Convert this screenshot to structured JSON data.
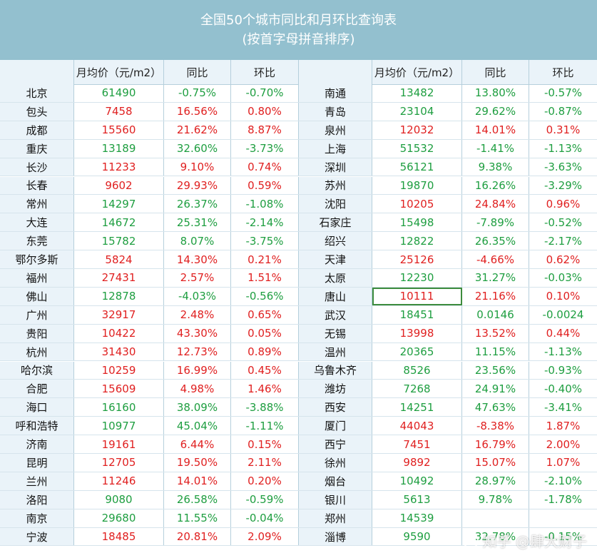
{
  "title": {
    "line1": "全国50个城市同比和月环比查询表",
    "line2": "(按首字母拼音排序)"
  },
  "headers": {
    "city": "",
    "price": "月均价（元/m2）",
    "yoy": "同比",
    "mom": "环比"
  },
  "colors": {
    "up": "#e02020",
    "down": "#1e9e40",
    "title_bg": "#93c0cf"
  },
  "rows": [
    {
      "l": {
        "city": "北京",
        "price": "61490",
        "yoy": "-0.75%",
        "mom": "-0.70%",
        "c": "neg"
      },
      "r": {
        "city": "南通",
        "price": "13482",
        "yoy": "13.80%",
        "mom": "-0.57%",
        "c": "neg"
      }
    },
    {
      "l": {
        "city": "包头",
        "price": "7458",
        "yoy": "16.56%",
        "mom": "0.80%",
        "c": "pos"
      },
      "r": {
        "city": "青岛",
        "price": "23104",
        "yoy": "29.62%",
        "mom": "-0.87%",
        "c": "neg"
      }
    },
    {
      "l": {
        "city": "成都",
        "price": "15560",
        "yoy": "21.62%",
        "mom": "8.87%",
        "c": "pos"
      },
      "r": {
        "city": "泉州",
        "price": "12032",
        "yoy": "14.01%",
        "mom": "0.31%",
        "c": "pos"
      }
    },
    {
      "l": {
        "city": "重庆",
        "price": "13189",
        "yoy": "32.60%",
        "mom": "-3.73%",
        "c": "neg"
      },
      "r": {
        "city": "上海",
        "price": "51532",
        "yoy": "-1.41%",
        "mom": "-1.13%",
        "c": "neg"
      }
    },
    {
      "l": {
        "city": "长沙",
        "price": "11233",
        "yoy": "9.10%",
        "mom": "0.74%",
        "c": "pos"
      },
      "r": {
        "city": "深圳",
        "price": "56121",
        "yoy": "9.38%",
        "mom": "-3.63%",
        "c": "neg"
      }
    },
    {
      "l": {
        "city": "长春",
        "price": "9602",
        "yoy": "29.93%",
        "mom": "0.59%",
        "c": "pos"
      },
      "r": {
        "city": "苏州",
        "price": "19870",
        "yoy": "16.26%",
        "mom": "-3.29%",
        "c": "neg"
      }
    },
    {
      "l": {
        "city": "常州",
        "price": "14297",
        "yoy": "26.37%",
        "mom": "-1.08%",
        "c": "neg"
      },
      "r": {
        "city": "沈阳",
        "price": "10205",
        "yoy": "24.84%",
        "mom": "0.96%",
        "c": "pos"
      }
    },
    {
      "l": {
        "city": "大连",
        "price": "14672",
        "yoy": "25.31%",
        "mom": "-2.14%",
        "c": "neg"
      },
      "r": {
        "city": "石家庄",
        "price": "15498",
        "yoy": "-7.89%",
        "mom": "-0.52%",
        "c": "neg"
      }
    },
    {
      "l": {
        "city": "东莞",
        "price": "15782",
        "yoy": "8.07%",
        "mom": "-3.75%",
        "c": "neg"
      },
      "r": {
        "city": "绍兴",
        "price": "12822",
        "yoy": "26.35%",
        "mom": "-2.17%",
        "c": "neg"
      }
    },
    {
      "l": {
        "city": "鄂尔多斯",
        "price": "5824",
        "yoy": "14.30%",
        "mom": "0.21%",
        "c": "pos"
      },
      "r": {
        "city": "天津",
        "price": "25126",
        "yoy": "-4.66%",
        "mom": "0.62%",
        "c": "pos"
      }
    },
    {
      "l": {
        "city": "福州",
        "price": "27431",
        "yoy": "2.57%",
        "mom": "1.51%",
        "c": "pos"
      },
      "r": {
        "city": "太原",
        "price": "12230",
        "yoy": "31.27%",
        "mom": "-0.03%",
        "c": "neg"
      }
    },
    {
      "l": {
        "city": "佛山",
        "price": "12878",
        "yoy": "-4.03%",
        "mom": "-0.56%",
        "c": "neg"
      },
      "r": {
        "city": "唐山",
        "price": "10111",
        "yoy": "21.16%",
        "mom": "0.10%",
        "c": "pos"
      }
    },
    {
      "l": {
        "city": "广州",
        "price": "32917",
        "yoy": "2.48%",
        "mom": "0.65%",
        "c": "pos"
      },
      "r": {
        "city": "武汉",
        "price": "18451",
        "yoy": "0.0146",
        "mom": "-0.0024",
        "c": "neg"
      }
    },
    {
      "l": {
        "city": "贵阳",
        "price": "10422",
        "yoy": "43.30%",
        "mom": "0.05%",
        "c": "pos"
      },
      "r": {
        "city": "无锡",
        "price": "13998",
        "yoy": "13.52%",
        "mom": "0.44%",
        "c": "pos"
      }
    },
    {
      "l": {
        "city": "杭州",
        "price": "31430",
        "yoy": "12.73%",
        "mom": "0.89%",
        "c": "pos"
      },
      "r": {
        "city": "温州",
        "price": "20365",
        "yoy": "11.15%",
        "mom": "-1.13%",
        "c": "neg"
      }
    },
    {
      "l": {
        "city": "哈尔滨",
        "price": "10259",
        "yoy": "16.99%",
        "mom": "0.45%",
        "c": "pos"
      },
      "r": {
        "city": "乌鲁木齐",
        "price": "8526",
        "yoy": "23.56%",
        "mom": "-0.93%",
        "c": "neg"
      }
    },
    {
      "l": {
        "city": "合肥",
        "price": "15609",
        "yoy": "4.98%",
        "mom": "1.46%",
        "c": "pos"
      },
      "r": {
        "city": "潍坊",
        "price": "7268",
        "yoy": "24.91%",
        "mom": "-0.40%",
        "c": "neg"
      }
    },
    {
      "l": {
        "city": "海口",
        "price": "16160",
        "yoy": "38.09%",
        "mom": "-3.88%",
        "c": "neg"
      },
      "r": {
        "city": "西安",
        "price": "14251",
        "yoy": "47.63%",
        "mom": "-3.41%",
        "c": "neg"
      }
    },
    {
      "l": {
        "city": "呼和浩特",
        "price": "10977",
        "yoy": "45.04%",
        "mom": "-1.11%",
        "c": "neg"
      },
      "r": {
        "city": "厦门",
        "price": "44043",
        "yoy": "-8.38%",
        "mom": "1.87%",
        "c": "pos"
      }
    },
    {
      "l": {
        "city": "济南",
        "price": "19161",
        "yoy": "6.44%",
        "mom": "0.15%",
        "c": "pos"
      },
      "r": {
        "city": "西宁",
        "price": "7451",
        "yoy": "16.79%",
        "mom": "2.00%",
        "c": "pos"
      }
    },
    {
      "l": {
        "city": "昆明",
        "price": "12705",
        "yoy": "19.50%",
        "mom": "2.11%",
        "c": "pos"
      },
      "r": {
        "city": "徐州",
        "price": "9892",
        "yoy": "15.07%",
        "mom": "1.07%",
        "c": "pos"
      }
    },
    {
      "l": {
        "city": "兰州",
        "price": "11246",
        "yoy": "14.01%",
        "mom": "0.20%",
        "c": "pos"
      },
      "r": {
        "city": "烟台",
        "price": "10492",
        "yoy": "28.97%",
        "mom": "-2.10%",
        "c": "neg"
      }
    },
    {
      "l": {
        "city": "洛阳",
        "price": "9080",
        "yoy": "26.58%",
        "mom": "-0.59%",
        "c": "neg"
      },
      "r": {
        "city": "银川",
        "price": "5613",
        "yoy": "9.78%",
        "mom": "-1.78%",
        "c": "neg"
      }
    },
    {
      "l": {
        "city": "南京",
        "price": "29680",
        "yoy": "11.55%",
        "mom": "-0.04%",
        "c": "neg"
      },
      "r": {
        "city": "郑州",
        "price": "14539",
        "yoy": "",
        "mom": "",
        "c": "neg"
      }
    },
    {
      "l": {
        "city": "宁波",
        "price": "18485",
        "yoy": "20.81%",
        "mom": "2.09%",
        "c": "pos"
      },
      "r": {
        "city": "淄博",
        "price": "9590",
        "yoy": "32.78%",
        "mom": "-0.15%",
        "c": "neg"
      }
    }
  ],
  "watermark": "知乎 @肆大财子"
}
